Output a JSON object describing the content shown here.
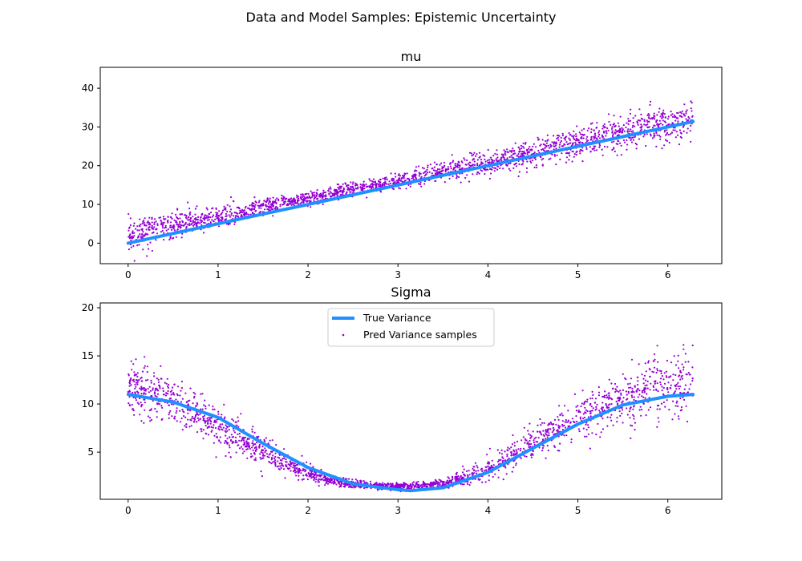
{
  "figure": {
    "suptitle": "Data and Model Samples: Epistemic Uncertainty"
  },
  "colors": {
    "true_line": "#1e90ff",
    "samples": "#9400d3",
    "axes": "#000000",
    "background": "#ffffff"
  },
  "chart_data": [
    {
      "type": "scatter",
      "title": "mu",
      "xlabel": "",
      "ylabel": "",
      "xlim": [
        -0.31,
        6.6
      ],
      "ylim": [
        -5.3,
        45.4
      ],
      "xticks": [
        0,
        1,
        2,
        3,
        4,
        5,
        6
      ],
      "yticks": [
        0,
        10,
        20,
        30,
        40
      ],
      "xtick_labels": [
        "0",
        "1",
        "2",
        "3",
        "4",
        "5",
        "6"
      ],
      "ytick_labels": [
        "0",
        "10",
        "20",
        "30",
        "40"
      ],
      "grid": false,
      "legend": null,
      "series": [
        {
          "kind": "line",
          "color": "#1e90ff",
          "x": [
            0,
            0.5,
            1,
            1.5,
            2,
            2.5,
            3,
            3.5,
            4,
            4.5,
            5,
            5.5,
            6,
            6.28
          ],
          "y": [
            0,
            2.5,
            5,
            7.5,
            10,
            12.5,
            15,
            17.5,
            20,
            22.5,
            25,
            27.5,
            30,
            31.4
          ]
        },
        {
          "kind": "scatter",
          "color": "#9400d3",
          "x_range": [
            0,
            6.28
          ],
          "center_y": [
            2,
            4.5,
            6.5,
            9,
            11,
            13.5,
            15.5,
            18,
            20,
            22.5,
            25,
            27.5,
            30,
            31.4
          ],
          "spread_y": [
            4.5,
            4,
            3.5,
            2.5,
            2,
            2,
            2,
            2.5,
            3,
            3.5,
            4,
            4.5,
            5,
            5.5
          ]
        }
      ]
    },
    {
      "type": "scatter",
      "title": "Sigma",
      "xlabel": "",
      "ylabel": "",
      "xlim": [
        -0.31,
        6.6
      ],
      "ylim": [
        0.1,
        20.5
      ],
      "xticks": [
        0,
        1,
        2,
        3,
        4,
        5,
        6
      ],
      "yticks": [
        5,
        10,
        15,
        20
      ],
      "xtick_labels": [
        "0",
        "1",
        "2",
        "3",
        "4",
        "5",
        "6"
      ],
      "ytick_labels": [
        "5",
        "10",
        "15",
        "20"
      ],
      "grid": false,
      "legend": {
        "placement": "upper center",
        "entries": [
          "True Variance",
          "Pred Variance samples"
        ]
      },
      "series": [
        {
          "name": "True Variance",
          "kind": "line",
          "color": "#1e90ff",
          "x": [
            0,
            0.5,
            1,
            1.5,
            2,
            2.5,
            3,
            3.14,
            3.5,
            4,
            4.5,
            5,
            5.5,
            6,
            6.28
          ],
          "y": [
            11,
            10.2,
            8.6,
            5.9,
            3.4,
            1.7,
            1.1,
            1.0,
            1.3,
            2.9,
            5.4,
            7.9,
            9.9,
            10.8,
            11
          ]
        },
        {
          "name": "Pred Variance samples",
          "kind": "scatter",
          "color": "#9400d3",
          "x_range": [
            0,
            6.28
          ],
          "center_y": [
            12,
            10.5,
            8.3,
            5.9,
            3.6,
            2.0,
            1.5,
            1.4,
            1.8,
            3.4,
            5.8,
            8.2,
            10.2,
            11.8,
            12.3
          ],
          "spread_y": [
            3.5,
            3,
            2.5,
            2,
            1.2,
            0.6,
            0.4,
            0.4,
            0.6,
            1.2,
            2,
            2.5,
            3,
            3.5,
            4
          ]
        }
      ]
    }
  ]
}
